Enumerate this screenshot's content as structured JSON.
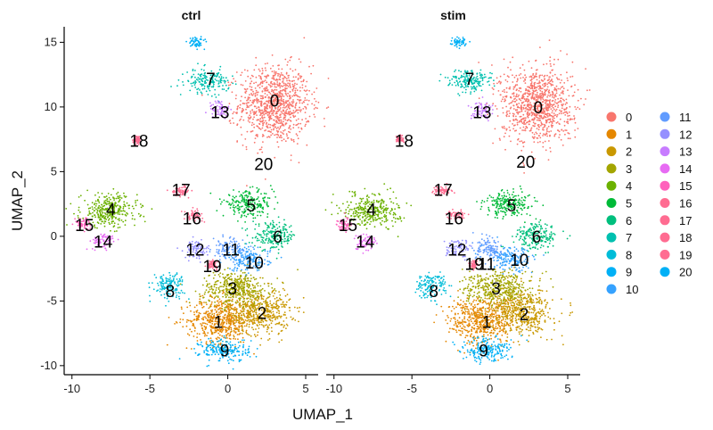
{
  "chart_data": {
    "type": "scatter",
    "title": "",
    "xlabel": "UMAP_1",
    "ylabel": "UMAP_2",
    "xlim": [
      -10.5,
      5.8
    ],
    "ylim": [
      -10.7,
      16.2
    ],
    "xticks": [
      -10,
      -5,
      0,
      5
    ],
    "yticks": [
      -10,
      -5,
      0,
      5,
      10,
      15
    ],
    "xtick_labels": [
      "-10",
      "-5",
      "0",
      "5"
    ],
    "ytick_labels": [
      "-10",
      "-5",
      "0",
      "5",
      "10",
      "15"
    ],
    "panels": [
      "ctrl",
      "stim"
    ],
    "legend_position": "right",
    "clusters": [
      {
        "id": "0",
        "color": "#F8766D",
        "cx": 3.0,
        "cy": 10.2,
        "rx": 2.3,
        "ry": 3.0
      },
      {
        "id": "1",
        "color": "#E58700",
        "cx": -0.5,
        "cy": -6.5,
        "rx": 2.1,
        "ry": 1.8
      },
      {
        "id": "2",
        "color": "#C99800",
        "cx": 2.0,
        "cy": -5.8,
        "rx": 2.0,
        "ry": 1.8
      },
      {
        "id": "3",
        "color": "#A3A500",
        "cx": 0.5,
        "cy": -4.0,
        "rx": 2.2,
        "ry": 1.3
      },
      {
        "id": "4",
        "color": "#6BB100",
        "cx": -7.6,
        "cy": 2.0,
        "rx": 1.8,
        "ry": 1.3
      },
      {
        "id": "5",
        "color": "#00BA38",
        "cx": 1.3,
        "cy": 2.5,
        "rx": 1.6,
        "ry": 1.0
      },
      {
        "id": "6",
        "color": "#00BF7D",
        "cx": 3.0,
        "cy": 0.0,
        "rx": 1.4,
        "ry": 1.0
      },
      {
        "id": "7",
        "color": "#00C0AF",
        "cx": -1.3,
        "cy": 12.0,
        "rx": 1.4,
        "ry": 0.9
      },
      {
        "id": "8",
        "color": "#00BCD8",
        "cx": -3.8,
        "cy": -3.8,
        "rx": 1.0,
        "ry": 1.0
      },
      {
        "id": "9",
        "color": "#00B0F6",
        "cx": -0.2,
        "cy": -8.8,
        "rx": 1.6,
        "ry": 0.9
      },
      {
        "id": "10",
        "color": "#35A2FF",
        "cx": 1.3,
        "cy": -1.8,
        "rx": 1.4,
        "ry": 0.9
      },
      {
        "id": "11",
        "color": "#619CFF",
        "cx": 0.0,
        "cy": -1.0,
        "rx": 1.0,
        "ry": 0.8
      },
      {
        "id": "12",
        "color": "#9590FF",
        "cx": -2.0,
        "cy": -1.0,
        "rx": 0.8,
        "ry": 0.7
      },
      {
        "id": "13",
        "color": "#C77CFF",
        "cx": -0.5,
        "cy": 9.8,
        "rx": 0.7,
        "ry": 0.7
      },
      {
        "id": "14",
        "color": "#E76BF3",
        "cx": -8.0,
        "cy": -0.4,
        "rx": 0.8,
        "ry": 0.6
      },
      {
        "id": "15",
        "color": "#FF62BC",
        "cx": -9.3,
        "cy": 1.0,
        "rx": 0.5,
        "ry": 0.5
      },
      {
        "id": "16",
        "color": "#FF6C91",
        "cx": -2.2,
        "cy": 1.6,
        "rx": 0.6,
        "ry": 0.4
      },
      {
        "id": "17",
        "color": "#FF6C91",
        "cx": -3.0,
        "cy": 3.5,
        "rx": 0.6,
        "ry": 0.35
      },
      {
        "id": "18",
        "color": "#FF6C91",
        "cx": -5.8,
        "cy": 7.5,
        "rx": 0.25,
        "ry": 0.3
      },
      {
        "id": "19",
        "color": "#FF6C91",
        "cx": -1.0,
        "cy": -2.2,
        "rx": 0.3,
        "ry": 0.3
      },
      {
        "id": "20",
        "color": "#00B0F6",
        "cx": -2.0,
        "cy": 15.0,
        "rx": 0.5,
        "ry": 0.4
      }
    ],
    "label_positions": {
      "ctrl": {
        "0": [
          3.0,
          10.5
        ],
        "1": [
          -0.6,
          -6.6
        ],
        "2": [
          2.2,
          -5.9
        ],
        "3": [
          0.3,
          -4.0
        ],
        "4": [
          -7.5,
          2.1
        ],
        "5": [
          1.5,
          2.4
        ],
        "6": [
          3.2,
          0.0
        ],
        "7": [
          -1.1,
          12.2
        ],
        "8": [
          -3.7,
          -4.2
        ],
        "9": [
          -0.2,
          -8.8
        ],
        "10": [
          1.7,
          -2.0
        ],
        "11": [
          0.2,
          -1.0
        ],
        "12": [
          -2.1,
          -1.0
        ],
        "13": [
          -0.5,
          9.6
        ],
        "14": [
          -8.0,
          -0.4
        ],
        "15": [
          -9.2,
          0.9
        ],
        "16": [
          -2.3,
          1.4
        ],
        "17": [
          -3.0,
          3.6
        ],
        "18": [
          -5.7,
          7.4
        ],
        "19": [
          -1.0,
          -2.3
        ],
        "20": [
          2.3,
          5.6
        ]
      },
      "stim": {
        "0": [
          3.1,
          10.0
        ],
        "1": [
          -0.2,
          -6.6
        ],
        "2": [
          2.2,
          -6.0
        ],
        "3": [
          0.4,
          -4.0
        ],
        "4": [
          -7.6,
          2.1
        ],
        "5": [
          1.4,
          2.4
        ],
        "6": [
          3.0,
          0.0
        ],
        "7": [
          -1.3,
          12.2
        ],
        "8": [
          -3.6,
          -4.2
        ],
        "9": [
          -0.4,
          -8.8
        ],
        "10": [
          1.9,
          -1.8
        ],
        "11": [
          -0.2,
          -2.1
        ],
        "12": [
          -2.1,
          -1.0
        ],
        "13": [
          -0.5,
          9.6
        ],
        "14": [
          -8.0,
          -0.4
        ],
        "15": [
          -9.1,
          0.9
        ],
        "16": [
          -2.3,
          1.4
        ],
        "17": [
          -3.0,
          3.6
        ],
        "18": [
          -5.5,
          7.4
        ],
        "19": [
          -1.0,
          -2.1
        ],
        "20": [
          2.3,
          5.8
        ]
      }
    }
  }
}
